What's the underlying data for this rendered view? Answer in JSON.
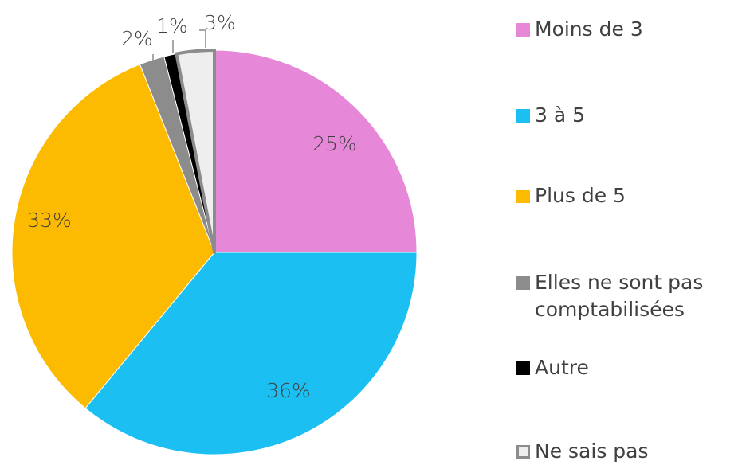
{
  "chart_data": {
    "type": "pie",
    "categories": [
      "Moins de 3",
      "3 à 5",
      "Plus de 5",
      "Elles ne sont pas comptabilisées",
      "Autre",
      "Ne sais pas"
    ],
    "values": [
      25,
      36,
      33,
      2,
      1,
      3
    ],
    "value_labels": [
      "25%",
      "36%",
      "33%",
      "2%",
      "1%",
      "3%"
    ],
    "colors": [
      "#e787d8",
      "#1bbff2",
      "#fcbb00",
      "#8c8c8c",
      "#000000",
      "#eeeeee"
    ],
    "legend": "right"
  }
}
